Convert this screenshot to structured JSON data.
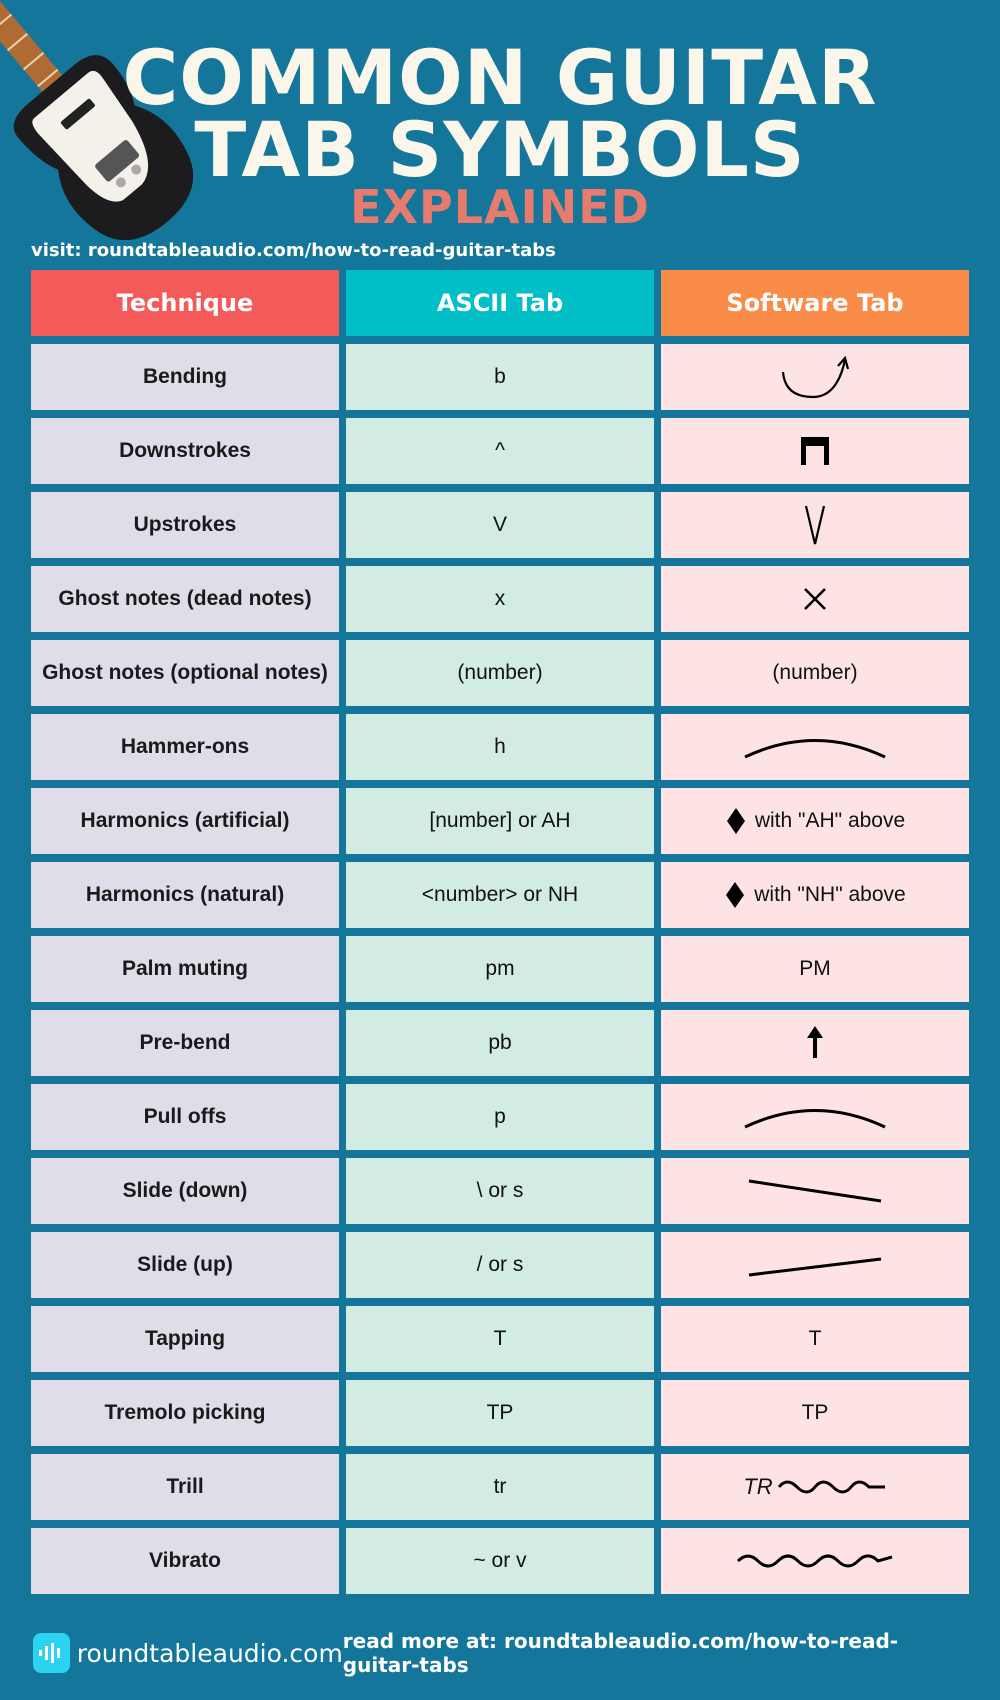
{
  "header": {
    "title_line1": "COMMON GUITAR",
    "title_line2": "TAB SYMBOLS",
    "subtitle": "EXPLAINED",
    "visit": "visit: roundtableaudio.com/how-to-read-guitar-tabs"
  },
  "table": {
    "columns": [
      "Technique",
      "ASCII Tab",
      "Software Tab"
    ],
    "rows": [
      {
        "technique": "Bending",
        "ascii": "b",
        "software_text": "",
        "software_icon": "bend-arrow-icon"
      },
      {
        "technique": "Downstrokes",
        "ascii": "^",
        "software_text": "",
        "software_icon": "downstroke-icon"
      },
      {
        "technique": "Upstrokes",
        "ascii": "V",
        "software_text": "",
        "software_icon": "upstroke-icon"
      },
      {
        "technique": "Ghost notes (dead notes)",
        "ascii": "x",
        "software_text": "",
        "software_icon": "x-icon"
      },
      {
        "technique": "Ghost notes (optional notes)",
        "ascii": "(number)",
        "software_text": "(number)",
        "software_icon": ""
      },
      {
        "technique": "Hammer-ons",
        "ascii": "h",
        "software_text": "",
        "software_icon": "slur-arc-icon"
      },
      {
        "technique": "Harmonics (artificial)",
        "ascii": "[number] or AH",
        "software_text": "with \"AH\" above",
        "software_icon": "diamond-icon"
      },
      {
        "technique": "Harmonics (natural)",
        "ascii": "<number> or NH",
        "software_text": "with \"NH\" above",
        "software_icon": "diamond-icon"
      },
      {
        "technique": "Palm muting",
        "ascii": "pm",
        "software_text": "PM",
        "software_icon": ""
      },
      {
        "technique": "Pre-bend",
        "ascii": "pb",
        "software_text": "",
        "software_icon": "up-arrow-icon"
      },
      {
        "technique": "Pull offs",
        "ascii": "p",
        "software_text": "",
        "software_icon": "slur-arc-icon"
      },
      {
        "technique": "Slide (down)",
        "ascii": "\\ or s",
        "software_text": "",
        "software_icon": "slide-down-icon"
      },
      {
        "technique": "Slide (up)",
        "ascii": "/ or s",
        "software_text": "",
        "software_icon": "slide-up-icon"
      },
      {
        "technique": "Tapping",
        "ascii": "T",
        "software_text": "T",
        "software_icon": ""
      },
      {
        "technique": "Tremolo picking",
        "ascii": "TP",
        "software_text": "TP",
        "software_icon": ""
      },
      {
        "technique": "Trill",
        "ascii": "tr",
        "software_text": "TR",
        "software_icon": "trill-wave-icon"
      },
      {
        "technique": "Vibrato",
        "ascii": "~ or v",
        "software_text": "",
        "software_icon": "vibrato-wave-icon"
      }
    ]
  },
  "footer": {
    "logo_text": "roundtableaudio.com",
    "read_more": "read more at: roundtableaudio.com/how-to-read-guitar-tabs"
  },
  "colors": {
    "background": "#13769a",
    "technique_header": "#f45a5a",
    "ascii_header": "#00bfc7",
    "software_header": "#f88c48",
    "subtitle": "#e77b6e"
  }
}
